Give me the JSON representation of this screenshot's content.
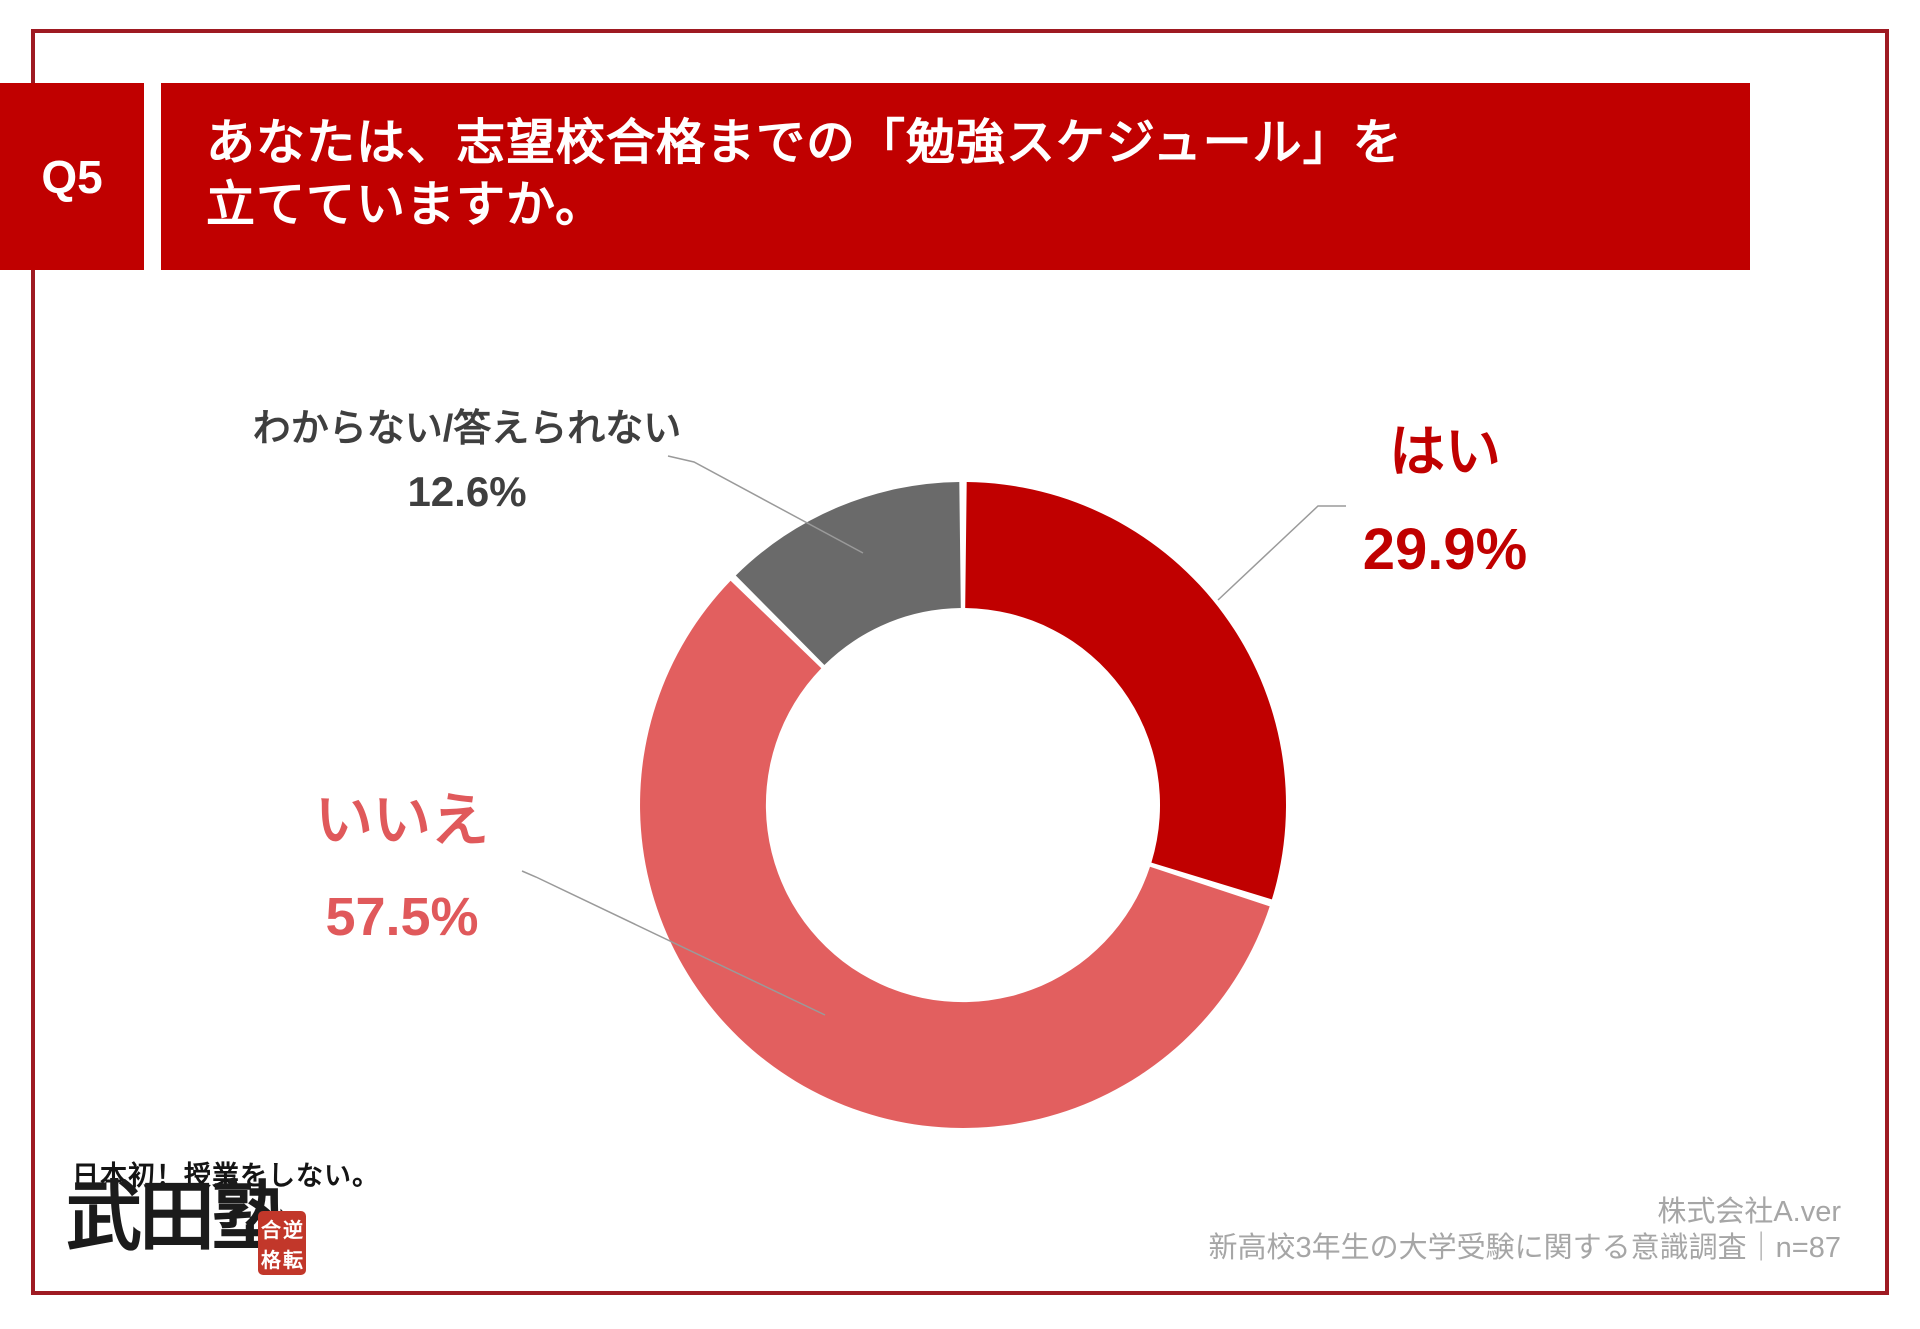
{
  "page": {
    "background": "#FFFFFF",
    "border_color": "#9E1A22"
  },
  "header": {
    "question_number": "Q5",
    "title_line1": "あなたは、志望校合格までの「勉強スケジュール」を",
    "title_line2": "立てていますか。",
    "banner_color": "#C00000",
    "text_color": "#FFFFFF"
  },
  "chart_data": {
    "type": "pie",
    "style": "donut",
    "categories": [
      "はい",
      "いいえ",
      "わからない/答えられない"
    ],
    "values": [
      29.9,
      57.5,
      12.6
    ],
    "unit": "%",
    "colors": [
      "#C00000",
      "#E25F5F",
      "#6A6A6A"
    ],
    "start_angle_deg": 0,
    "direction": "clockwise",
    "inner_radius_ratio": 0.61,
    "legend_position": "outside-callouts",
    "labels": [
      {
        "key": "yes",
        "name": "はい",
        "value_text": "29.9%",
        "color": "#C00000"
      },
      {
        "key": "no",
        "name": "いいえ",
        "value_text": "57.5%",
        "color": "#E0595B"
      },
      {
        "key": "unknown",
        "name": "わからない/答えられない",
        "value_text": "12.6%",
        "color": "#3F3F3F"
      }
    ]
  },
  "footer": {
    "logo": {
      "tagline": "日本初！授業をしない。",
      "brand": "武田塾",
      "seal_text": "逆転合格",
      "seal_chars": [
        "合",
        "逆",
        "格",
        "転"
      ],
      "seal_color": "#C2372A"
    },
    "credit_line1": "株式会社A.ver",
    "credit_line2": "新高校3年生の大学受験に関する意識調査｜n=87"
  }
}
